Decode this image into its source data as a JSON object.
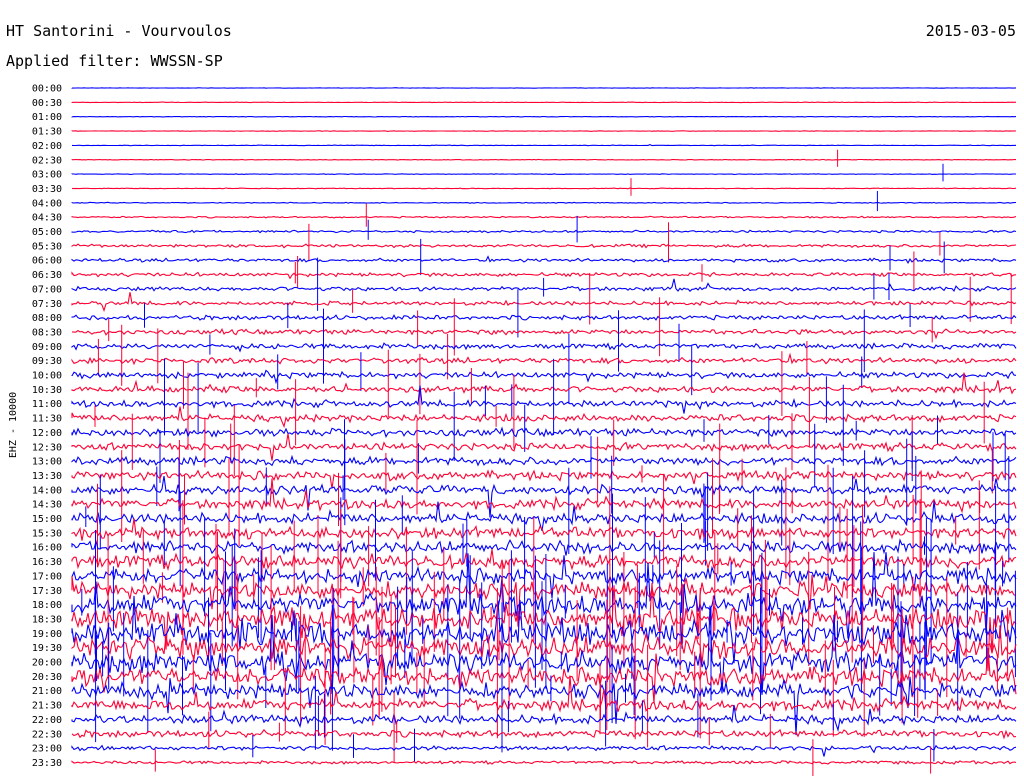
{
  "chart_data": {
    "type": "line",
    "title": "HT Santorini - Vourvoulos",
    "date": "2015-03-05",
    "filter_label": "Applied filter: WWSSN-SP",
    "ylabel": "EHZ - 10000",
    "colors": {
      "even": "#0000ff",
      "odd": "#ff0033",
      "text": "#000000"
    },
    "grid": false,
    "legend": "none",
    "tick_labels": [
      "00:00",
      "00:30",
      "01:00",
      "01:30",
      "02:00",
      "02:30",
      "03:00",
      "03:30",
      "04:00",
      "04:30",
      "05:00",
      "05:30",
      "06:00",
      "06:30",
      "07:00",
      "07:30",
      "08:00",
      "08:30",
      "09:00",
      "09:30",
      "10:00",
      "10:30",
      "11:00",
      "11:30",
      "12:00",
      "12:30",
      "13:00",
      "13:30",
      "14:00",
      "14:30",
      "15:00",
      "15:30",
      "16:00",
      "16:30",
      "17:00",
      "17:30",
      "18:00",
      "18:30",
      "19:00",
      "19:30",
      "20:00",
      "20:30",
      "21:00",
      "21:30",
      "22:00",
      "22:30",
      "23:00",
      "23:30"
    ],
    "trace_activity": [
      0.06,
      0.06,
      0.06,
      0.07,
      0.07,
      0.08,
      0.08,
      0.09,
      0.12,
      0.2,
      0.3,
      0.4,
      0.45,
      0.5,
      0.55,
      0.55,
      0.6,
      0.65,
      0.7,
      0.75,
      0.8,
      0.85,
      0.9,
      0.95,
      1.0,
      1.0,
      1.1,
      1.15,
      1.25,
      1.3,
      1.4,
      1.5,
      1.6,
      1.8,
      2.0,
      2.2,
      2.6,
      2.8,
      3.0,
      3.0,
      2.8,
      2.4,
      2.0,
      1.5,
      1.2,
      0.9,
      0.6,
      0.4
    ]
  }
}
